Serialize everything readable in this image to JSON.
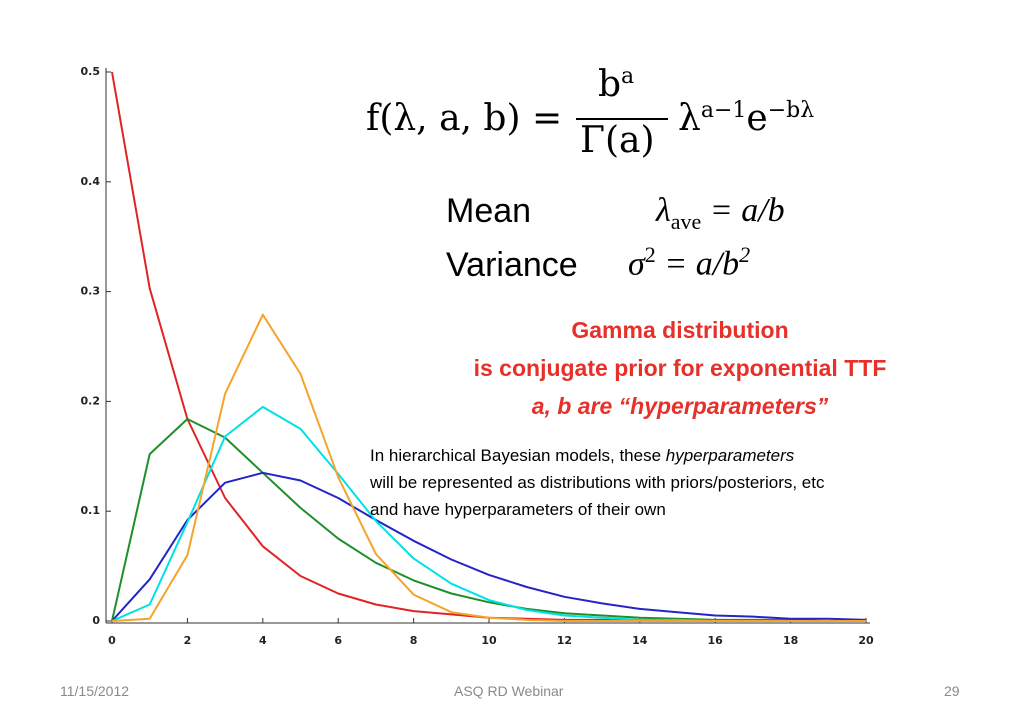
{
  "chart_data": {
    "type": "line",
    "x": [
      0,
      1,
      2,
      3,
      4,
      5,
      6,
      7,
      8,
      9,
      10,
      11,
      12,
      13,
      14,
      15,
      16,
      17,
      18,
      19,
      20
    ],
    "series": [
      {
        "color": "#e02424",
        "values": [
          0.5,
          0.303,
          0.184,
          0.112,
          0.068,
          0.041,
          0.025,
          0.015,
          0.009,
          0.006,
          0.003,
          0.002,
          0.001,
          0.001,
          0,
          0,
          0,
          0,
          0,
          0,
          0
        ]
      },
      {
        "color": "#1f8f2a",
        "values": [
          0,
          0.152,
          0.184,
          0.167,
          0.135,
          0.103,
          0.075,
          0.053,
          0.037,
          0.025,
          0.017,
          0.011,
          0.007,
          0.005,
          0.003,
          0.002,
          0.001,
          0.001,
          0.001,
          0,
          0
        ]
      },
      {
        "color": "#2424c8",
        "values": [
          0,
          0.038,
          0.092,
          0.126,
          0.135,
          0.128,
          0.112,
          0.092,
          0.073,
          0.056,
          0.042,
          0.031,
          0.022,
          0.016,
          0.011,
          0.008,
          0.005,
          0.004,
          0.002,
          0.002,
          0.001
        ]
      },
      {
        "color": "#00e0e8",
        "values": [
          0,
          0.015,
          0.09,
          0.168,
          0.195,
          0.175,
          0.134,
          0.091,
          0.057,
          0.034,
          0.019,
          0.01,
          0.005,
          0.003,
          0.001,
          0.001,
          0,
          0,
          0,
          0,
          0
        ]
      },
      {
        "color": "#f5a32a",
        "values": [
          0,
          0.002,
          0.06,
          0.207,
          0.279,
          0.225,
          0.131,
          0.061,
          0.024,
          0.008,
          0.003,
          0.001,
          0,
          0,
          0,
          0,
          0,
          0,
          0,
          0,
          0
        ]
      }
    ],
    "xlim": [
      0,
      20
    ],
    "xticks": [
      0,
      2,
      4,
      6,
      8,
      10,
      12,
      14,
      16,
      18,
      20
    ],
    "ylim": [
      0,
      0.5
    ],
    "yticks": [
      0,
      0.1,
      0.2,
      0.3,
      0.4,
      0.5
    ]
  },
  "slide": {
    "formula": {
      "lhs": "f(λ, a, b) =",
      "num": "b",
      "num_exp": "a",
      "den": "Γ(a)",
      "lam": "λ",
      "lam_exp": "a−1",
      "e": "e",
      "e_exp": "−bλ"
    },
    "mean": {
      "label": "Mean",
      "sym": "λ",
      "sub": "ave",
      "rhs": "= a/b"
    },
    "variance": {
      "label": "Variance",
      "sym": "σ",
      "sup": "2",
      "rhs": "= a/b",
      "rhs_sup": "2"
    },
    "highlight": [
      "Gamma distribution",
      "is conjugate prior for exponential TTF",
      "a, b are “hyperparameters”"
    ],
    "note": {
      "line1": "In hierarchical Bayesian models, these ",
      "line1_em": "hyperparameters",
      "line2": "will be represented as distributions with priors/posteriors, etc",
      "line3": "and have hyperparameters of their own"
    },
    "footer": {
      "date": "11/15/2012",
      "center": "ASQ RD Webinar",
      "page": "29"
    }
  }
}
